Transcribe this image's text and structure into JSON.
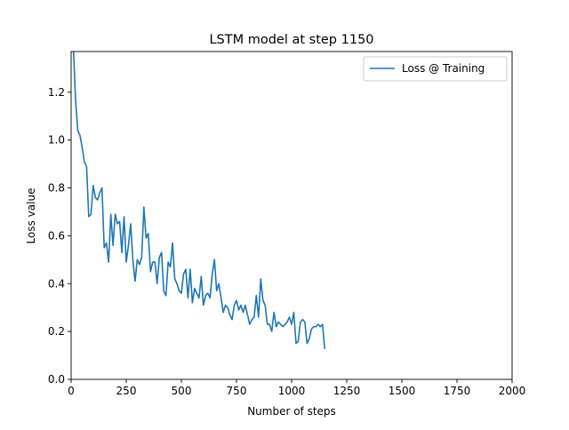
{
  "chart_data": {
    "type": "line",
    "title": "LSTM model at step 1150",
    "xlabel": "Number of steps",
    "ylabel": "Loss value",
    "xlim": [
      0,
      2000
    ],
    "ylim": [
      0,
      1.37
    ],
    "xticks": [
      0,
      250,
      500,
      750,
      1000,
      1250,
      1500,
      1750,
      2000
    ],
    "yticks": [
      0.0,
      0.2,
      0.4,
      0.6,
      0.8,
      1.0,
      1.2
    ],
    "xtick_labels": [
      "0",
      "250",
      "500",
      "750",
      "1000",
      "1250",
      "1500",
      "1750",
      "2000"
    ],
    "ytick_labels": [
      "0.0",
      "0.2",
      "0.4",
      "0.6",
      "0.8",
      "1.0",
      "1.2"
    ],
    "grid": false,
    "legend_position": "top-right",
    "series": [
      {
        "name": "Loss @ Training",
        "color": "#1f77b4",
        "x": [
          0,
          10,
          20,
          30,
          40,
          50,
          60,
          70,
          80,
          90,
          100,
          110,
          120,
          130,
          140,
          150,
          160,
          170,
          180,
          190,
          200,
          210,
          220,
          230,
          240,
          250,
          260,
          270,
          280,
          290,
          300,
          310,
          320,
          330,
          340,
          350,
          360,
          370,
          380,
          390,
          400,
          410,
          420,
          430,
          440,
          450,
          460,
          470,
          480,
          490,
          500,
          510,
          520,
          530,
          540,
          550,
          560,
          570,
          580,
          590,
          600,
          610,
          620,
          630,
          640,
          650,
          660,
          670,
          680,
          690,
          700,
          710,
          720,
          730,
          740,
          750,
          760,
          770,
          780,
          790,
          800,
          810,
          820,
          830,
          840,
          850,
          860,
          870,
          880,
          890,
          900,
          910,
          920,
          930,
          940,
          950,
          960,
          970,
          980,
          990,
          1000,
          1010,
          1020,
          1030,
          1040,
          1050,
          1060,
          1070,
          1080,
          1090,
          1100,
          1110,
          1120,
          1130,
          1140,
          1150
        ],
        "values": [
          1.37,
          1.39,
          1.17,
          1.04,
          1.02,
          0.97,
          0.91,
          0.89,
          0.68,
          0.69,
          0.81,
          0.76,
          0.75,
          0.78,
          0.8,
          0.55,
          0.57,
          0.49,
          0.69,
          0.56,
          0.69,
          0.65,
          0.66,
          0.53,
          0.68,
          0.49,
          0.56,
          0.65,
          0.5,
          0.41,
          0.5,
          0.48,
          0.51,
          0.72,
          0.59,
          0.61,
          0.45,
          0.49,
          0.49,
          0.4,
          0.51,
          0.53,
          0.37,
          0.35,
          0.49,
          0.47,
          0.57,
          0.42,
          0.4,
          0.37,
          0.36,
          0.44,
          0.46,
          0.34,
          0.46,
          0.32,
          0.38,
          0.36,
          0.34,
          0.43,
          0.31,
          0.35,
          0.36,
          0.34,
          0.44,
          0.5,
          0.37,
          0.4,
          0.34,
          0.28,
          0.31,
          0.3,
          0.27,
          0.25,
          0.31,
          0.33,
          0.29,
          0.31,
          0.28,
          0.31,
          0.27,
          0.23,
          0.25,
          0.26,
          0.35,
          0.26,
          0.42,
          0.33,
          0.31,
          0.23,
          0.23,
          0.2,
          0.28,
          0.22,
          0.24,
          0.23,
          0.22,
          0.23,
          0.24,
          0.26,
          0.23,
          0.28,
          0.15,
          0.16,
          0.24,
          0.25,
          0.24,
          0.15,
          0.17,
          0.21,
          0.22,
          0.22,
          0.23,
          0.22,
          0.23,
          0.13
        ]
      }
    ]
  }
}
